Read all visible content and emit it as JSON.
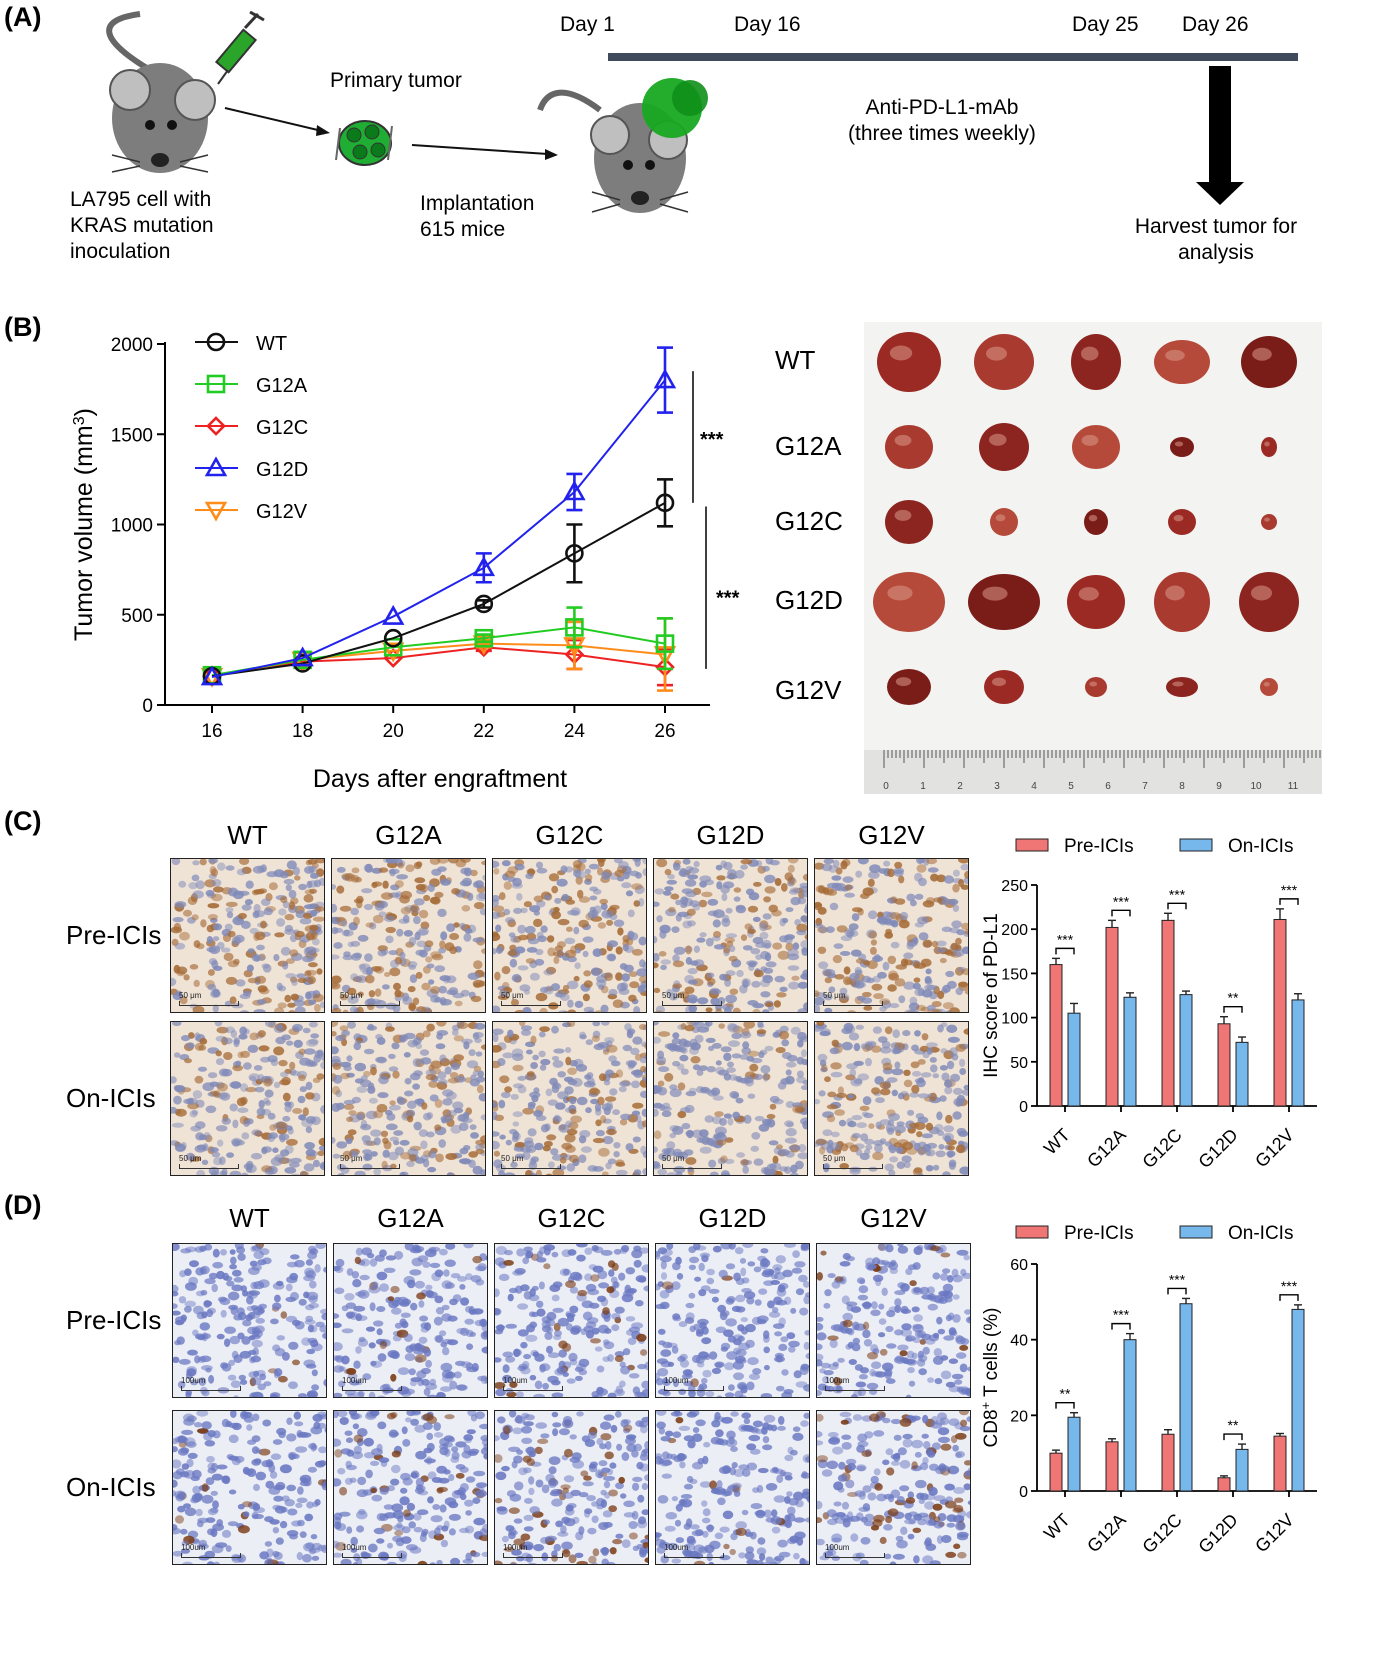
{
  "panels": {
    "a": "(A)",
    "b": "(B)",
    "c": "(C)",
    "d": "(D)"
  },
  "panel_a": {
    "timeline_days": [
      "Day 1",
      "Day 16",
      "Day 25",
      "Day 26"
    ],
    "inoculation": [
      "LA795 cell with",
      "KRAS mutation",
      "inoculation"
    ],
    "primary_tumor": "Primary tumor",
    "implantation": [
      "Implantation",
      "615 mice"
    ],
    "treatment": [
      "Anti-PD-L1-mAb",
      "(three times weekly)"
    ],
    "harvest": [
      "Harvest tumor for",
      "analysis"
    ]
  },
  "colors": {
    "WT": "#111111",
    "G12A": "#22cc22",
    "G12C": "#ee2222",
    "G12D": "#2222ee",
    "G12V": "#ff8c1a",
    "pre": "#f07575",
    "on": "#76b7ec"
  },
  "chart_data": [
    {
      "type": "line",
      "xlabel": "Days after engraftment",
      "ylabel": "Tumor volume (mm",
      "ylabel_sup": "3",
      "ylabel_end": ")",
      "x": [
        16,
        18,
        20,
        22,
        24,
        26
      ],
      "xlim": [
        16,
        26
      ],
      "ylim": [
        0,
        2000
      ],
      "yticks": [
        0,
        500,
        1000,
        1500,
        2000
      ],
      "series": [
        {
          "name": "WT",
          "marker": "circle",
          "values": [
            160,
            230,
            370,
            560,
            840,
            1120
          ],
          "err": [
            0,
            0,
            0,
            20,
            160,
            130
          ]
        },
        {
          "name": "G12A",
          "marker": "square",
          "values": [
            165,
            250,
            320,
            370,
            430,
            340
          ],
          "err": [
            0,
            0,
            0,
            20,
            110,
            140
          ]
        },
        {
          "name": "G12C",
          "marker": "diamond",
          "values": [
            160,
            240,
            260,
            320,
            280,
            210
          ],
          "err": [
            0,
            0,
            0,
            20,
            80,
            100
          ]
        },
        {
          "name": "G12D",
          "marker": "triangle-up",
          "values": [
            155,
            260,
            490,
            760,
            1180,
            1800
          ],
          "err": [
            0,
            0,
            0,
            80,
            100,
            180
          ]
        },
        {
          "name": "G12V",
          "marker": "triangle-down",
          "values": [
            160,
            250,
            300,
            340,
            330,
            280
          ],
          "err": [
            0,
            0,
            0,
            20,
            130,
            200
          ]
        }
      ],
      "significance": [
        "***",
        "***"
      ],
      "legend_position": "top-left"
    },
    {
      "type": "bar",
      "ylabel": "IHC score of PD-L1",
      "categories": [
        "WT",
        "G12A",
        "G12C",
        "G12D",
        "G12V"
      ],
      "ylim": [
        0,
        250
      ],
      "yticks": [
        0,
        50,
        100,
        150,
        200,
        250
      ],
      "series": [
        {
          "name": "Pre-ICIs",
          "values": [
            160,
            202,
            210,
            93,
            211
          ],
          "err": [
            7,
            8,
            8,
            8,
            12
          ]
        },
        {
          "name": "On-ICIs",
          "values": [
            105,
            123,
            126,
            72,
            120
          ],
          "err": [
            11,
            5,
            4,
            6,
            7
          ]
        }
      ],
      "significance": [
        "***",
        "***",
        "***",
        "**",
        "***"
      ],
      "legend_position": "top"
    },
    {
      "type": "bar",
      "ylabel": "CD8",
      "ylabel_sup": "+",
      "ylabel_end": " T cells (%)",
      "categories": [
        "WT",
        "G12A",
        "G12C",
        "G12D",
        "G12V"
      ],
      "ylim": [
        0,
        60
      ],
      "yticks": [
        0,
        20,
        40,
        60
      ],
      "series": [
        {
          "name": "Pre-ICIs",
          "values": [
            10,
            13,
            15,
            3.5,
            14.5
          ],
          "err": [
            0.8,
            0.8,
            1.2,
            0.5,
            0.7
          ]
        },
        {
          "name": "On-ICIs",
          "values": [
            19.5,
            40,
            49.5,
            11,
            48
          ],
          "err": [
            1.2,
            1.6,
            1.4,
            1.4,
            1.2
          ]
        }
      ],
      "significance": [
        "**",
        "***",
        "***",
        "**",
        "***"
      ],
      "legend_position": "top"
    }
  ],
  "photo_rows": [
    "WT",
    "G12A",
    "G12C",
    "G12D",
    "G12V"
  ],
  "ruler_numbers": [
    "0",
    "1",
    "2",
    "3",
    "4",
    "5",
    "6",
    "7",
    "8",
    "9",
    "10",
    "11"
  ],
  "ihc": {
    "columns": [
      "WT",
      "G12A",
      "G12C",
      "G12D",
      "G12V"
    ],
    "rows": [
      "Pre-ICIs",
      "On-ICIs"
    ],
    "scale_c": "50 μm",
    "scale_d": "100um"
  }
}
